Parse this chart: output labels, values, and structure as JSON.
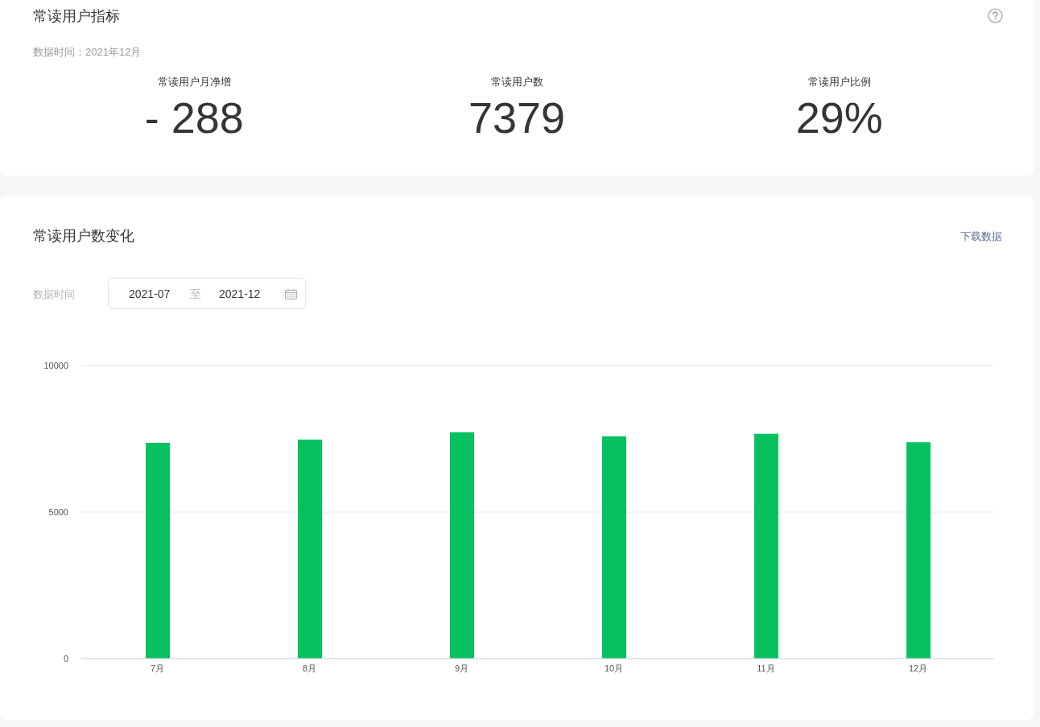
{
  "chart_data": [
    {
      "type": "other",
      "title": "常读用户指标",
      "subtitle": "数据时间：2021年12月",
      "categories": [
        "常读用户月净增",
        "常读用户数",
        "常读用户比例"
      ],
      "value_labels": [
        "- 288",
        "7379",
        "29%"
      ]
    },
    {
      "type": "bar",
      "title": "常读用户数变化",
      "annotations": [
        "下载数据",
        "数据时间",
        "2021-07",
        "至",
        "2021-12"
      ],
      "categories": [
        "7月",
        "8月",
        "9月",
        "10月",
        "11月",
        "12月"
      ],
      "values": [
        7360,
        7470,
        7720,
        7580,
        7670,
        7380
      ],
      "color": "#07c160",
      "ylim": [
        0,
        10000
      ],
      "yticks": [
        0,
        5000,
        10000
      ],
      "grid": "y"
    }
  ]
}
